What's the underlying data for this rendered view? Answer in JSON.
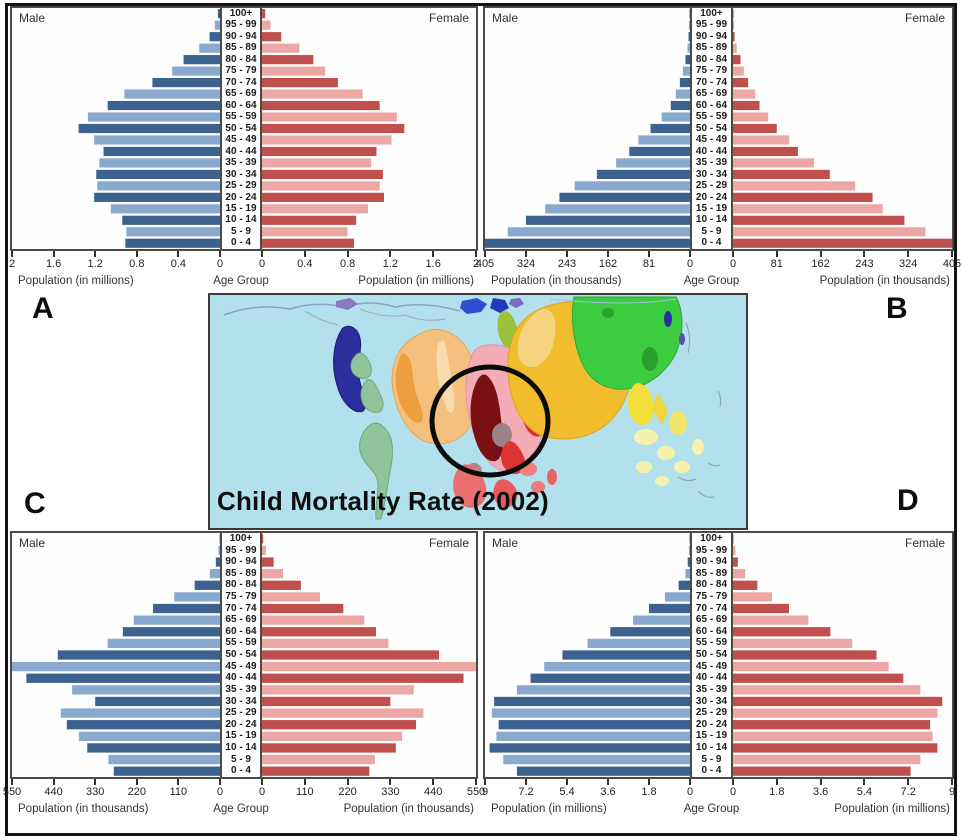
{
  "figure": {
    "description_labels": [
      "A",
      "B",
      "C",
      "D"
    ]
  },
  "age_groups": [
    "100+",
    "95 - 99",
    "90 - 94",
    "85 - 89",
    "80 - 84",
    "75 - 79",
    "70 - 74",
    "65 - 69",
    "60 - 64",
    "55 - 59",
    "50 - 54",
    "45 - 49",
    "40 - 44",
    "35 - 39",
    "30 - 34",
    "25 - 29",
    "20 - 24",
    "15 - 19",
    "10 - 14",
    "5 - 9",
    "0 - 4"
  ],
  "colors": {
    "male_dark": "#3c6390",
    "male_light": "#8aa9cf",
    "female_dark": "#c0504d",
    "female_light": "#eba7a4",
    "panel_border": "#4a4a4a",
    "map_sea": "#b2e0ed",
    "annotation_circle": "#0b0b0b"
  },
  "chart_data": [
    {
      "id": "A",
      "panel_letter": "A",
      "type": "bar",
      "subtype": "population-pyramid",
      "male_label": "Male",
      "female_label": "Female",
      "axis_title": "Population (in millions)",
      "center_axis_title": "Age Group",
      "axis_max": 2,
      "axis_ticks": [
        "2",
        "1.6",
        "1.2",
        "0.8",
        "0.4",
        "0"
      ],
      "categories_ref": "age_groups",
      "series": [
        {
          "name": "Male",
          "values": [
            0.02,
            0.05,
            0.1,
            0.2,
            0.35,
            0.46,
            0.65,
            0.92,
            1.08,
            1.27,
            1.36,
            1.21,
            1.12,
            1.16,
            1.19,
            1.18,
            1.21,
            1.05,
            0.94,
            0.9,
            0.91
          ]
        },
        {
          "name": "Female",
          "values": [
            0.03,
            0.08,
            0.18,
            0.35,
            0.48,
            0.59,
            0.71,
            0.94,
            1.1,
            1.26,
            1.33,
            1.21,
            1.07,
            1.02,
            1.13,
            1.1,
            1.14,
            0.99,
            0.88,
            0.8,
            0.86
          ]
        }
      ]
    },
    {
      "id": "B",
      "panel_letter": "B",
      "type": "bar",
      "subtype": "population-pyramid",
      "male_label": "Male",
      "female_label": "Female",
      "axis_title": "Population (in thousands)",
      "center_axis_title": "Age Group",
      "axis_max": 405,
      "axis_ticks": [
        "405",
        "324",
        "243",
        "162",
        "81",
        "0"
      ],
      "categories_ref": "age_groups",
      "series": [
        {
          "name": "Male",
          "values": [
            1,
            2,
            3,
            5,
            9,
            14,
            20,
            28,
            38,
            56,
            78,
            102,
            120,
            146,
            184,
            228,
            258,
            286,
            324,
            360,
            408
          ]
        },
        {
          "name": "Female",
          "values": [
            1,
            2,
            3,
            7,
            14,
            20,
            28,
            41,
            49,
            65,
            81,
            104,
            120,
            150,
            179,
            226,
            258,
            277,
            317,
            356,
            405
          ]
        }
      ]
    },
    {
      "id": "C",
      "panel_letter": "C",
      "type": "bar",
      "subtype": "population-pyramid",
      "male_label": "Male",
      "female_label": "Female",
      "axis_title": "Population (in thousands)",
      "center_axis_title": "Age Group",
      "axis_max": 550,
      "axis_ticks": [
        "550",
        "440",
        "330",
        "220",
        "110",
        "0"
      ],
      "categories_ref": "age_groups",
      "series": [
        {
          "name": "Male",
          "values": [
            1,
            4,
            11,
            27,
            67,
            121,
            177,
            228,
            257,
            297,
            429,
            556,
            512,
            391,
            330,
            421,
            405,
            373,
            351,
            295,
            281
          ]
        },
        {
          "name": "Female",
          "values": [
            3,
            10,
            30,
            54,
            100,
            149,
            209,
            263,
            293,
            325,
            455,
            572,
            518,
            390,
            330,
            415,
            396,
            360,
            344,
            290,
            276
          ]
        }
      ]
    },
    {
      "id": "D",
      "panel_letter": "D",
      "type": "bar",
      "subtype": "population-pyramid",
      "male_label": "Male",
      "female_label": "Female",
      "axis_title": "Population (in millions)",
      "center_axis_title": "Age Group",
      "axis_max": 9,
      "axis_ticks": [
        "9",
        "7.2",
        "5.4",
        "3.6",
        "1.8",
        "0"
      ],
      "categories_ref": "age_groups",
      "series": [
        {
          "name": "Male",
          "values": [
            0.02,
            0.05,
            0.1,
            0.2,
            0.5,
            1.1,
            1.8,
            2.5,
            3.5,
            4.5,
            5.6,
            6.4,
            7.0,
            7.6,
            8.6,
            8.7,
            8.4,
            8.5,
            8.8,
            8.2,
            7.6
          ]
        },
        {
          "name": "Female",
          "values": [
            0.02,
            0.1,
            0.2,
            0.5,
            1.0,
            1.6,
            2.3,
            3.1,
            4.0,
            4.9,
            5.9,
            6.4,
            7.0,
            7.7,
            8.6,
            8.4,
            8.1,
            8.2,
            8.4,
            7.7,
            7.3
          ]
        }
      ]
    },
    {
      "id": "map",
      "type": "cartogram",
      "title": "Child Mortality Rate  (2002)",
      "annotation": "circle highlighting sub-Saharan Africa region"
    }
  ]
}
